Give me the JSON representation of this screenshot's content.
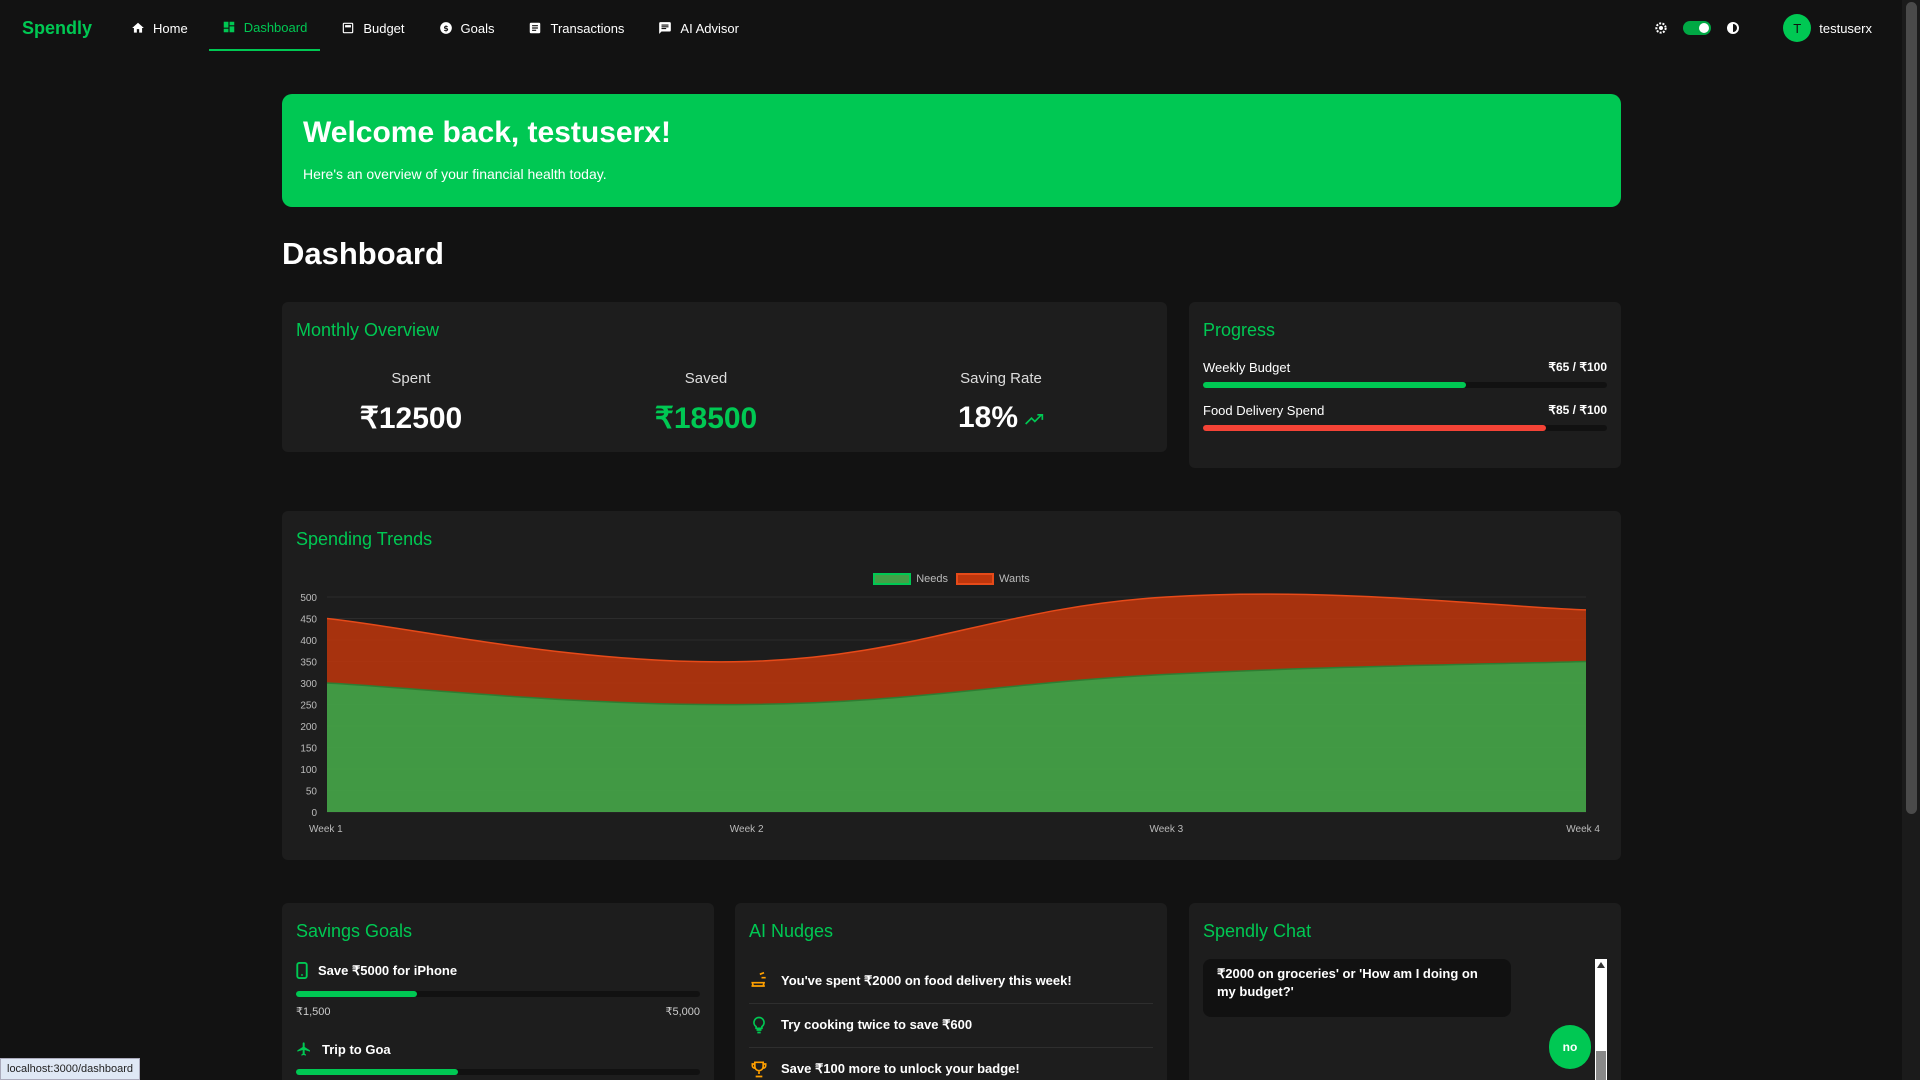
{
  "nav": {
    "logo": "Spendly",
    "items": [
      {
        "label": "Home",
        "icon": "home-icon"
      },
      {
        "label": "Dashboard",
        "icon": "dashboard-icon"
      },
      {
        "label": "Budget",
        "icon": "budget-icon"
      },
      {
        "label": "Goals",
        "icon": "dollar-icon"
      },
      {
        "label": "Transactions",
        "icon": "list-icon"
      },
      {
        "label": "AI Advisor",
        "icon": "chat-icon"
      }
    ],
    "active": "Dashboard",
    "username": "testuserx",
    "avatar_letter": "T"
  },
  "banner": {
    "title": "Welcome back, testuserx!",
    "subtitle": "Here's an overview of your financial health today."
  },
  "page_title": "Dashboard",
  "monthly": {
    "title": "Monthly Overview",
    "spent_label": "Spent",
    "spent_value": "₹12500",
    "saved_label": "Saved",
    "saved_value": "₹18500",
    "rate_label": "Saving Rate",
    "rate_value": "18%"
  },
  "progress": {
    "title": "Progress",
    "items": [
      {
        "label": "Weekly Budget",
        "amount": "₹65 / ₹100",
        "fraction": 0.65,
        "color": "#00c853"
      },
      {
        "label": "Food Delivery Spend",
        "amount": "₹85 / ₹100",
        "fraction": 0.85,
        "color": "#f44336"
      }
    ]
  },
  "trends": {
    "title": "Spending Trends"
  },
  "chart_data": {
    "type": "area",
    "categories": [
      "Week 1",
      "Week 2",
      "Week 3",
      "Week 4"
    ],
    "series": [
      {
        "name": "Needs",
        "values": [
          300,
          250,
          320,
          350
        ],
        "color": "#43a047"
      },
      {
        "name": "Wants",
        "values": [
          150,
          100,
          180,
          120
        ],
        "color": "#bf360c"
      }
    ],
    "stacked": true,
    "ylim": [
      0,
      500
    ],
    "yticks": [
      0,
      50,
      100,
      150,
      200,
      250,
      300,
      350,
      400,
      450,
      500
    ],
    "legend": "top-center",
    "grid": true
  },
  "goals": {
    "title": "Savings Goals",
    "items": [
      {
        "label": "Save ₹5000 for iPhone",
        "icon": "phone-icon",
        "min": "₹1,500",
        "max": "₹5,000",
        "fraction": 0.3
      },
      {
        "label": "Trip to Goa",
        "icon": "plane-icon",
        "fraction": 0.4
      }
    ]
  },
  "nudges": {
    "title": "AI Nudges",
    "items": [
      {
        "text": "You've spent ₹2000 on food delivery this week!",
        "icon": "food-icon"
      },
      {
        "text": "Try cooking twice to save ₹600",
        "icon": "lightbulb-icon"
      },
      {
        "text": "Save ₹100 more to unlock your badge!",
        "icon": "trophy-icon"
      }
    ]
  },
  "chat": {
    "title": "Spendly Chat",
    "bot_message": "₹2000 on groceries' or 'How am I doing on my budget?'",
    "user_message": "no"
  },
  "status_url": "localhost:3000/dashboard"
}
